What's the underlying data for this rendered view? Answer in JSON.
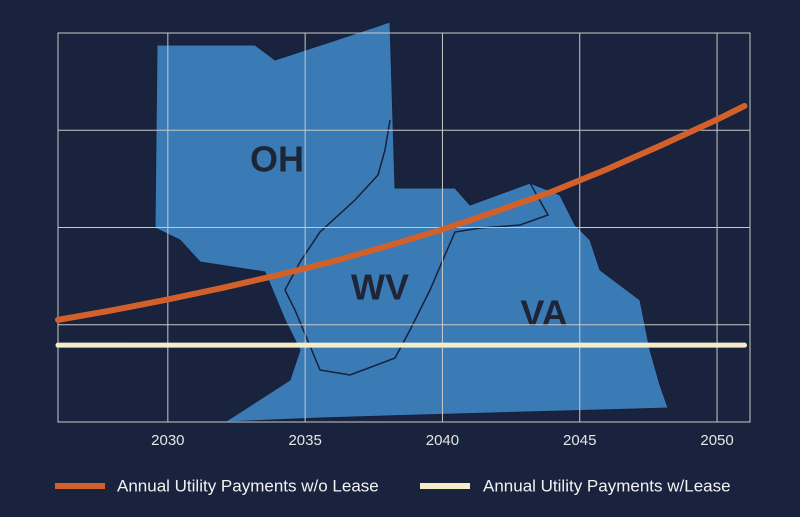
{
  "chart_data": {
    "type": "line",
    "x": [
      2026,
      2028,
      2030,
      2032,
      2034,
      2036,
      2038,
      2040,
      2042,
      2044,
      2046,
      2048,
      2050,
      2051
    ],
    "series": [
      {
        "name": "Annual Utility Payments w/o Lease",
        "color": "#d2602b",
        "values": [
          1.05,
          1.15,
          1.26,
          1.38,
          1.51,
          1.65,
          1.81,
          1.98,
          2.17,
          2.37,
          2.6,
          2.85,
          3.11,
          3.25
        ]
      },
      {
        "name": "Annual Utility Payments w/Lease",
        "color": "#f5ecc8",
        "values": [
          0.79,
          0.79,
          0.79,
          0.79,
          0.79,
          0.79,
          0.79,
          0.79,
          0.79,
          0.79,
          0.79,
          0.79,
          0.79,
          0.79
        ]
      }
    ],
    "xlim": [
      2026,
      2051.2
    ],
    "xticks": [
      2030,
      2035,
      2040,
      2045,
      2050
    ],
    "ylim": [
      0,
      4
    ],
    "yticks": [
      0,
      1,
      2,
      3,
      4
    ],
    "grid": true,
    "annotations": [
      "OH",
      "WV",
      "VA"
    ]
  }
}
